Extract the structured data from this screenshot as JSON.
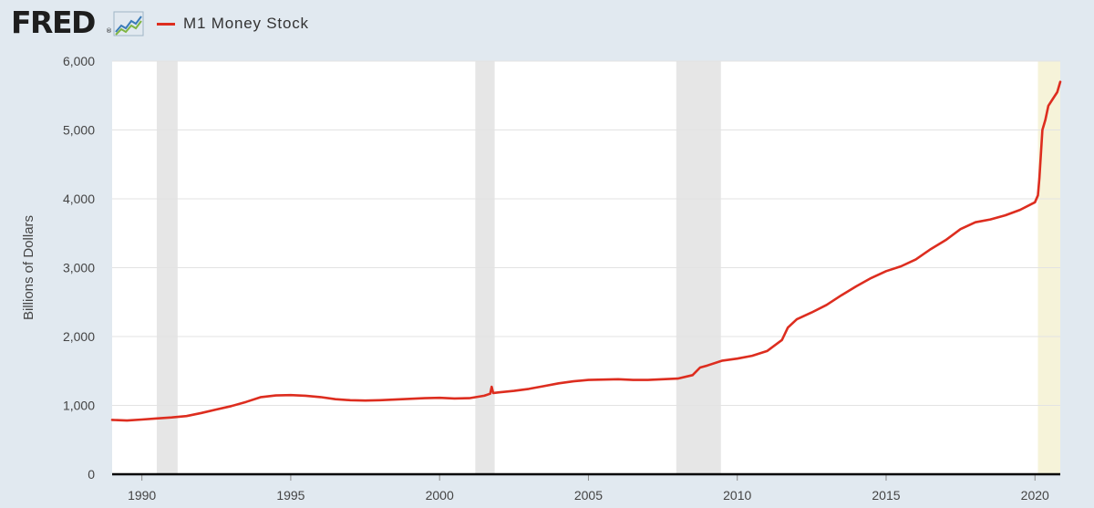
{
  "header": {
    "logo_text": "FRED",
    "logo_mark": "®",
    "logo_icon": "line-chart-icon",
    "legend_label": "M1 Money Stock",
    "legend_color": "#dd2d1f"
  },
  "chart_data": {
    "type": "line",
    "title": "",
    "xlabel": "",
    "ylabel": "Billions of Dollars",
    "xlim": [
      1989.0,
      2020.85
    ],
    "ylim": [
      0,
      6000
    ],
    "x_ticks": [
      1990,
      1995,
      2000,
      2005,
      2010,
      2015,
      2020
    ],
    "y_ticks": [
      {
        "value": 0,
        "label": "0"
      },
      {
        "value": 1000,
        "label": "1,000"
      },
      {
        "value": 2000,
        "label": "2,000"
      },
      {
        "value": 3000,
        "label": "3,000"
      },
      {
        "value": 4000,
        "label": "4,000"
      },
      {
        "value": 5000,
        "label": "5,000"
      },
      {
        "value": 6000,
        "label": "6,000"
      }
    ],
    "grid": true,
    "legend": "top-left",
    "recessions": [
      {
        "start": 1990.5,
        "end": 1991.2,
        "color": "#e6e6e6"
      },
      {
        "start": 2001.2,
        "end": 2001.85,
        "color": "#e6e6e6"
      },
      {
        "start": 2007.95,
        "end": 2009.45,
        "color": "#e6e6e6"
      },
      {
        "start": 2020.1,
        "end": 2020.85,
        "color": "#f6f3d9"
      }
    ],
    "series": [
      {
        "name": "M1 Money Stock",
        "color": "#dd2d1f",
        "x": [
          1989.0,
          1989.5,
          1990.0,
          1990.5,
          1991.0,
          1991.5,
          1992.0,
          1992.5,
          1993.0,
          1993.5,
          1994.0,
          1994.5,
          1995.0,
          1995.5,
          1996.0,
          1996.5,
          1997.0,
          1997.5,
          1998.0,
          1998.5,
          1999.0,
          1999.5,
          2000.0,
          2000.5,
          2001.0,
          2001.5,
          2001.7,
          2001.75,
          2001.8,
          2002.0,
          2002.5,
          2003.0,
          2003.5,
          2004.0,
          2004.5,
          2005.0,
          2005.5,
          2006.0,
          2006.5,
          2007.0,
          2007.5,
          2008.0,
          2008.5,
          2008.75,
          2009.0,
          2009.5,
          2010.0,
          2010.5,
          2011.0,
          2011.5,
          2011.7,
          2012.0,
          2012.5,
          2013.0,
          2013.5,
          2014.0,
          2014.5,
          2015.0,
          2015.5,
          2016.0,
          2016.5,
          2017.0,
          2017.5,
          2018.0,
          2018.5,
          2019.0,
          2019.5,
          2020.0,
          2020.1,
          2020.15,
          2020.25,
          2020.35,
          2020.45,
          2020.6,
          2020.75,
          2020.85
        ],
        "values": [
          790,
          780,
          795,
          810,
          825,
          845,
          890,
          940,
          990,
          1050,
          1120,
          1145,
          1150,
          1140,
          1120,
          1090,
          1075,
          1070,
          1075,
          1085,
          1095,
          1105,
          1110,
          1100,
          1105,
          1140,
          1170,
          1270,
          1180,
          1190,
          1210,
          1240,
          1280,
          1320,
          1350,
          1370,
          1375,
          1380,
          1370,
          1370,
          1380,
          1390,
          1440,
          1550,
          1580,
          1650,
          1680,
          1720,
          1790,
          1950,
          2130,
          2250,
          2350,
          2460,
          2600,
          2730,
          2850,
          2950,
          3020,
          3120,
          3270,
          3400,
          3560,
          3660,
          3700,
          3760,
          3840,
          3950,
          4050,
          4300,
          5000,
          5150,
          5350,
          5450,
          5550,
          5700
        ]
      }
    ]
  }
}
